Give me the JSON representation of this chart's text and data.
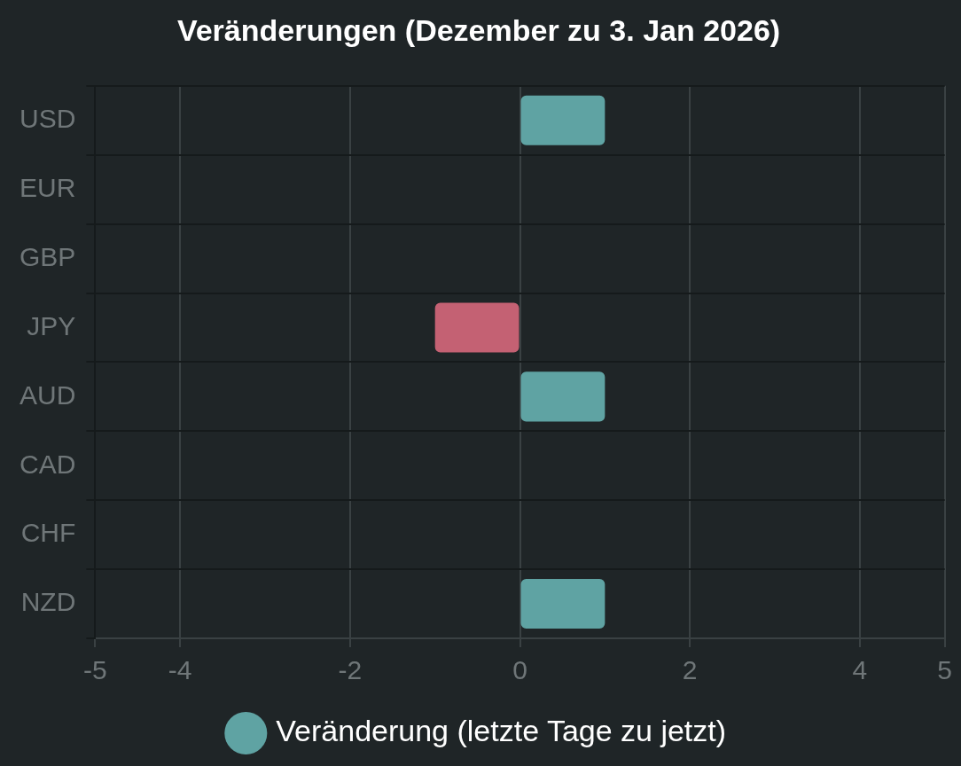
{
  "chart_data": {
    "type": "bar",
    "orientation": "horizontal",
    "title": "Veränderungen (Dezember zu 3. Jan 2026)",
    "categories": [
      "USD",
      "EUR",
      "GBP",
      "JPY",
      "AUD",
      "CAD",
      "CHF",
      "NZD"
    ],
    "series": [
      {
        "name": "Veränderung (letzte Tage zu jetzt)",
        "color": "#5fa3a3",
        "colors": [
          "#5fa3a3",
          "#5fa3a3",
          "#5fa3a3",
          "#c46173",
          "#5fa3a3",
          "#5fa3a3",
          "#5fa3a3",
          "#5fa3a3"
        ],
        "values": [
          1,
          0,
          0,
          -1,
          1,
          0,
          0,
          1
        ]
      }
    ],
    "xlim": [
      -5,
      5
    ],
    "xticks": [
      -5,
      -4,
      -2,
      0,
      2,
      4,
      5
    ],
    "grid": true,
    "legend": "bottom",
    "marker": "circle"
  }
}
